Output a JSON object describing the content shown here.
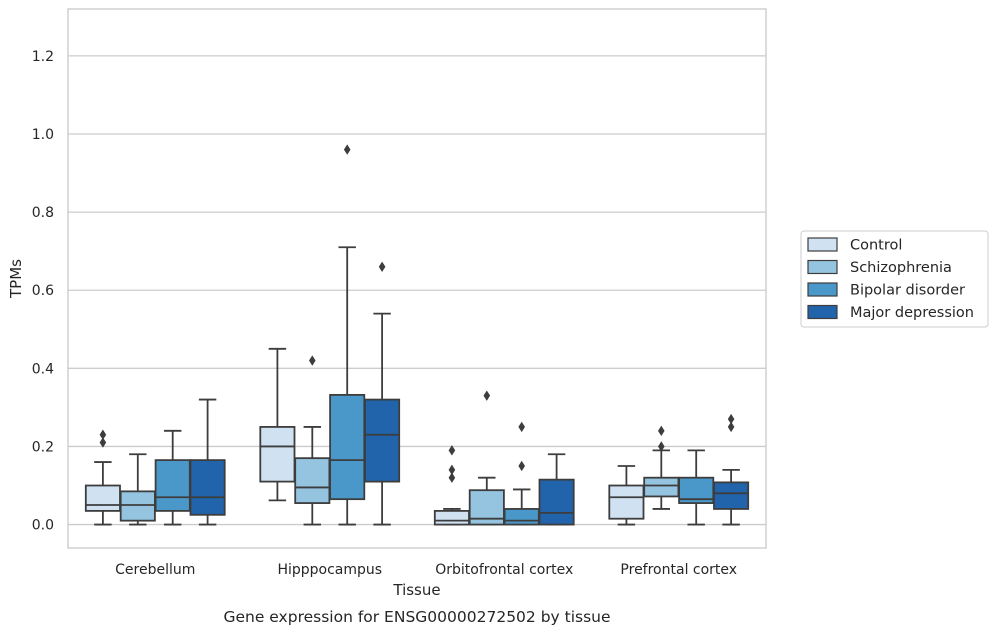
{
  "chart_data": {
    "type": "box",
    "caption": "Gene expression for ENSG00000272502 by tissue",
    "xlabel": "Tissue",
    "ylabel": "TPMs",
    "ylim": [
      -0.06,
      1.32
    ],
    "yticks": [
      "0.0",
      "0.2",
      "0.4",
      "0.6",
      "0.8",
      "1.0",
      "1.2"
    ],
    "grid": true,
    "legend_position": "right",
    "categories": [
      "Cerebellum",
      "Hipppocampus",
      "Orbitofrontal cortex",
      "Prefrontal cortex"
    ],
    "series": [
      {
        "name": "Control",
        "color": "#d0e1f2",
        "boxes": [
          {
            "whislo": 0.0,
            "q1": 0.035,
            "med": 0.05,
            "q3": 0.1,
            "whishi": 0.16,
            "fliers": [
              0.21,
              0.23
            ]
          },
          {
            "whislo": 0.062,
            "q1": 0.11,
            "med": 0.2,
            "q3": 0.25,
            "whishi": 0.45,
            "fliers": []
          },
          {
            "whislo": 0.0,
            "q1": 0.0,
            "med": 0.01,
            "q3": 0.035,
            "whishi": 0.04,
            "fliers": [
              0.12,
              0.14,
              0.19
            ]
          },
          {
            "whislo": 0.0,
            "q1": 0.015,
            "med": 0.07,
            "q3": 0.1,
            "whishi": 0.15,
            "fliers": []
          }
        ]
      },
      {
        "name": "Schizophrenia",
        "color": "#94c4df",
        "boxes": [
          {
            "whislo": 0.0,
            "q1": 0.01,
            "med": 0.05,
            "q3": 0.085,
            "whishi": 0.18,
            "fliers": []
          },
          {
            "whislo": 0.0,
            "q1": 0.055,
            "med": 0.095,
            "q3": 0.17,
            "whishi": 0.25,
            "fliers": [
              0.42
            ]
          },
          {
            "whislo": 0.0,
            "q1": 0.0,
            "med": 0.015,
            "q3": 0.088,
            "whishi": 0.12,
            "fliers": [
              0.33
            ]
          },
          {
            "whislo": 0.04,
            "q1": 0.072,
            "med": 0.1,
            "q3": 0.12,
            "whishi": 0.19,
            "fliers": [
              0.2,
              0.24
            ]
          }
        ]
      },
      {
        "name": "Bipolar disorder",
        "color": "#4a98c9",
        "boxes": [
          {
            "whislo": 0.0,
            "q1": 0.035,
            "med": 0.07,
            "q3": 0.165,
            "whishi": 0.24,
            "fliers": []
          },
          {
            "whislo": 0.0,
            "q1": 0.065,
            "med": 0.165,
            "q3": 0.332,
            "whishi": 0.71,
            "fliers": [
              0.96
            ]
          },
          {
            "whislo": 0.0,
            "q1": 0.0,
            "med": 0.01,
            "q3": 0.04,
            "whishi": 0.09,
            "fliers": [
              0.15,
              0.25
            ]
          },
          {
            "whislo": 0.0,
            "q1": 0.055,
            "med": 0.065,
            "q3": 0.12,
            "whishi": 0.19,
            "fliers": []
          }
        ]
      },
      {
        "name": "Major depression",
        "color": "#2164ab",
        "boxes": [
          {
            "whislo": 0.0,
            "q1": 0.025,
            "med": 0.07,
            "q3": 0.165,
            "whishi": 0.32,
            "fliers": []
          },
          {
            "whislo": 0.0,
            "q1": 0.11,
            "med": 0.23,
            "q3": 0.32,
            "whishi": 0.54,
            "fliers": [
              0.66
            ]
          },
          {
            "whislo": 0.0,
            "q1": 0.0,
            "med": 0.03,
            "q3": 0.115,
            "whishi": 0.18,
            "fliers": []
          },
          {
            "whislo": 0.0,
            "q1": 0.04,
            "med": 0.08,
            "q3": 0.108,
            "whishi": 0.14,
            "fliers": [
              0.25,
              0.27
            ]
          }
        ]
      }
    ]
  },
  "styles": {
    "edge_color": "#3d3d3d",
    "grid_color": "#cccccc",
    "frame_color": "#cccccc",
    "flier_color": "#3d3d3d"
  }
}
